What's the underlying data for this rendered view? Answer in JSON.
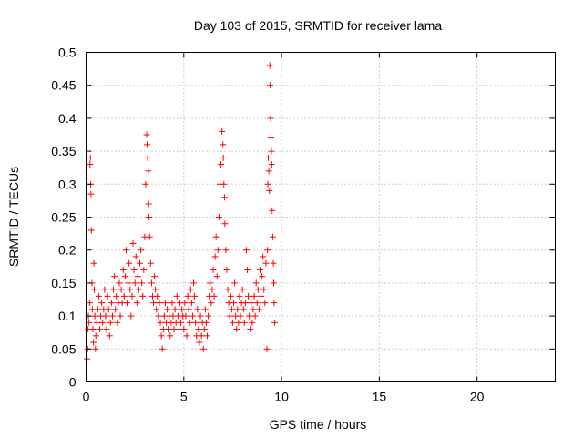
{
  "chart_data": {
    "type": "scatter",
    "title": "Day 103 of 2015, SRMTID for receiver lama",
    "xlabel": "GPS time / hours",
    "ylabel": "SRMTID / TECUs",
    "xlim": [
      0,
      24
    ],
    "ylim": [
      0,
      0.5
    ],
    "x_ticks": [
      "0",
      "5",
      "10",
      "15",
      "20"
    ],
    "y_ticks": [
      "0",
      "0.05",
      "0.1",
      "0.15",
      "0.2",
      "0.25",
      "0.3",
      "0.35",
      "0.4",
      "0.45",
      "0.5"
    ],
    "grid": true,
    "marker": "+",
    "color": "#ff0000",
    "points": [
      [
        0.05,
        0.035
      ],
      [
        0.08,
        0.05
      ],
      [
        0.1,
        0.08
      ],
      [
        0.12,
        0.1
      ],
      [
        0.15,
        0.09
      ],
      [
        0.18,
        0.12
      ],
      [
        0.2,
        0.33
      ],
      [
        0.22,
        0.34
      ],
      [
        0.24,
        0.3
      ],
      [
        0.25,
        0.285
      ],
      [
        0.27,
        0.23
      ],
      [
        0.3,
        0.15
      ],
      [
        0.32,
        0.11
      ],
      [
        0.35,
        0.08
      ],
      [
        0.38,
        0.06
      ],
      [
        0.4,
        0.18
      ],
      [
        0.42,
        0.14
      ],
      [
        0.45,
        0.1
      ],
      [
        0.48,
        0.05
      ],
      [
        0.5,
        0.07
      ],
      [
        0.55,
        0.09
      ],
      [
        0.6,
        0.11
      ],
      [
        0.65,
        0.13
      ],
      [
        0.7,
        0.08
      ],
      [
        0.75,
        0.1
      ],
      [
        0.8,
        0.12
      ],
      [
        0.85,
        0.09
      ],
      [
        0.9,
        0.11
      ],
      [
        0.95,
        0.14
      ],
      [
        1.0,
        0.1
      ],
      [
        1.05,
        0.08
      ],
      [
        1.1,
        0.13
      ],
      [
        1.15,
        0.11
      ],
      [
        1.2,
        0.07
      ],
      [
        1.25,
        0.09
      ],
      [
        1.3,
        0.12
      ],
      [
        1.35,
        0.1
      ],
      [
        1.4,
        0.14
      ],
      [
        1.45,
        0.16
      ],
      [
        1.5,
        0.11
      ],
      [
        1.55,
        0.13
      ],
      [
        1.6,
        0.09
      ],
      [
        1.65,
        0.12
      ],
      [
        1.7,
        0.15
      ],
      [
        1.75,
        0.1
      ],
      [
        1.8,
        0.14
      ],
      [
        1.85,
        0.12
      ],
      [
        1.9,
        0.17
      ],
      [
        1.95,
        0.13
      ],
      [
        2.0,
        0.16
      ],
      [
        2.05,
        0.2
      ],
      [
        2.1,
        0.12
      ],
      [
        2.15,
        0.15
      ],
      [
        2.2,
        0.18
      ],
      [
        2.25,
        0.14
      ],
      [
        2.3,
        0.1
      ],
      [
        2.35,
        0.13
      ],
      [
        2.4,
        0.21
      ],
      [
        2.45,
        0.17
      ],
      [
        2.5,
        0.15
      ],
      [
        2.55,
        0.19
      ],
      [
        2.6,
        0.12
      ],
      [
        2.65,
        0.16
      ],
      [
        2.7,
        0.14
      ],
      [
        2.75,
        0.18
      ],
      [
        2.8,
        0.2
      ],
      [
        2.85,
        0.15
      ],
      [
        2.9,
        0.13
      ],
      [
        2.95,
        0.17
      ],
      [
        3.0,
        0.22
      ],
      [
        3.05,
        0.3
      ],
      [
        3.1,
        0.375
      ],
      [
        3.12,
        0.36
      ],
      [
        3.15,
        0.34
      ],
      [
        3.18,
        0.32
      ],
      [
        3.2,
        0.27
      ],
      [
        3.22,
        0.25
      ],
      [
        3.25,
        0.22
      ],
      [
        3.3,
        0.18
      ],
      [
        3.35,
        0.15
      ],
      [
        3.4,
        0.13
      ],
      [
        3.45,
        0.12
      ],
      [
        3.5,
        0.16
      ],
      [
        3.55,
        0.14
      ],
      [
        3.6,
        0.11
      ],
      [
        3.65,
        0.13
      ],
      [
        3.7,
        0.1
      ],
      [
        3.75,
        0.12
      ],
      [
        3.8,
        0.09
      ],
      [
        3.85,
        0.07
      ],
      [
        3.9,
        0.05
      ],
      [
        3.95,
        0.08
      ],
      [
        4.0,
        0.1
      ],
      [
        4.05,
        0.12
      ],
      [
        4.1,
        0.09
      ],
      [
        4.15,
        0.11
      ],
      [
        4.2,
        0.08
      ],
      [
        4.25,
        0.1
      ],
      [
        4.3,
        0.07
      ],
      [
        4.35,
        0.09
      ],
      [
        4.4,
        0.12
      ],
      [
        4.45,
        0.1
      ],
      [
        4.5,
        0.08
      ],
      [
        4.55,
        0.11
      ],
      [
        4.6,
        0.09
      ],
      [
        4.65,
        0.13
      ],
      [
        4.7,
        0.1
      ],
      [
        4.75,
        0.08
      ],
      [
        4.8,
        0.12
      ],
      [
        4.85,
        0.09
      ],
      [
        4.9,
        0.11
      ],
      [
        4.95,
        0.1
      ],
      [
        5.0,
        0.08
      ],
      [
        5.05,
        0.12
      ],
      [
        5.1,
        0.1
      ],
      [
        5.15,
        0.07
      ],
      [
        5.2,
        0.13
      ],
      [
        5.25,
        0.11
      ],
      [
        5.3,
        0.09
      ],
      [
        5.35,
        0.14
      ],
      [
        5.4,
        0.12
      ],
      [
        5.45,
        0.1
      ],
      [
        5.5,
        0.15
      ],
      [
        5.55,
        0.13
      ],
      [
        5.6,
        0.09
      ],
      [
        5.65,
        0.07
      ],
      [
        5.7,
        0.11
      ],
      [
        5.75,
        0.08
      ],
      [
        5.8,
        0.06
      ],
      [
        5.85,
        0.1
      ],
      [
        5.9,
        0.07
      ],
      [
        5.95,
        0.09
      ],
      [
        6.0,
        0.05
      ],
      [
        6.05,
        0.08
      ],
      [
        6.1,
        0.11
      ],
      [
        6.15,
        0.09
      ],
      [
        6.2,
        0.07
      ],
      [
        6.25,
        0.1
      ],
      [
        6.3,
        0.13
      ],
      [
        6.35,
        0.15
      ],
      [
        6.4,
        0.12
      ],
      [
        6.45,
        0.14
      ],
      [
        6.5,
        0.17
      ],
      [
        6.55,
        0.13
      ],
      [
        6.6,
        0.19
      ],
      [
        6.65,
        0.22
      ],
      [
        6.7,
        0.16
      ],
      [
        6.75,
        0.2
      ],
      [
        6.8,
        0.25
      ],
      [
        6.85,
        0.3
      ],
      [
        6.9,
        0.33
      ],
      [
        6.95,
        0.38
      ],
      [
        7.0,
        0.36
      ],
      [
        7.02,
        0.34
      ],
      [
        7.05,
        0.3
      ],
      [
        7.08,
        0.28
      ],
      [
        7.1,
        0.24
      ],
      [
        7.15,
        0.2
      ],
      [
        7.2,
        0.17
      ],
      [
        7.25,
        0.14
      ],
      [
        7.3,
        0.12
      ],
      [
        7.35,
        0.1
      ],
      [
        7.4,
        0.13
      ],
      [
        7.45,
        0.11
      ],
      [
        7.5,
        0.09
      ],
      [
        7.55,
        0.12
      ],
      [
        7.6,
        0.15
      ],
      [
        7.65,
        0.1
      ],
      [
        7.7,
        0.08
      ],
      [
        7.75,
        0.11
      ],
      [
        7.8,
        0.09
      ],
      [
        7.85,
        0.13
      ],
      [
        7.9,
        0.1
      ],
      [
        7.95,
        0.12
      ],
      [
        8.0,
        0.14
      ],
      [
        8.05,
        0.11
      ],
      [
        8.1,
        0.09
      ],
      [
        8.15,
        0.12
      ],
      [
        8.2,
        0.2
      ],
      [
        8.25,
        0.17
      ],
      [
        8.3,
        0.13
      ],
      [
        8.35,
        0.1
      ],
      [
        8.4,
        0.08
      ],
      [
        8.45,
        0.12
      ],
      [
        8.5,
        0.09
      ],
      [
        8.55,
        0.11
      ],
      [
        8.6,
        0.13
      ],
      [
        8.65,
        0.1
      ],
      [
        8.7,
        0.15
      ],
      [
        8.75,
        0.12
      ],
      [
        8.8,
        0.14
      ],
      [
        8.85,
        0.11
      ],
      [
        8.9,
        0.17
      ],
      [
        8.95,
        0.13
      ],
      [
        9.0,
        0.16
      ],
      [
        9.05,
        0.19
      ],
      [
        9.1,
        0.14
      ],
      [
        9.15,
        0.12
      ],
      [
        9.2,
        0.18
      ],
      [
        9.25,
        0.05
      ],
      [
        9.28,
        0.2
      ],
      [
        9.3,
        0.3
      ],
      [
        9.32,
        0.34
      ],
      [
        9.35,
        0.32
      ],
      [
        9.38,
        0.29
      ],
      [
        9.4,
        0.48
      ],
      [
        9.42,
        0.45
      ],
      [
        9.44,
        0.4
      ],
      [
        9.46,
        0.37
      ],
      [
        9.48,
        0.35
      ],
      [
        9.5,
        0.33
      ],
      [
        9.52,
        0.26
      ],
      [
        9.55,
        0.22
      ],
      [
        9.58,
        0.18
      ],
      [
        9.6,
        0.15
      ],
      [
        9.62,
        0.12
      ],
      [
        9.65,
        0.09
      ]
    ]
  }
}
